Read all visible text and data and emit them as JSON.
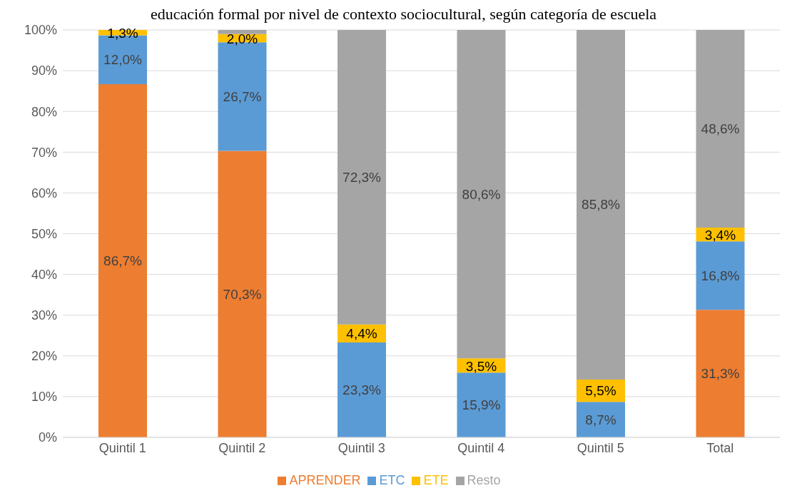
{
  "chart_data": {
    "type": "bar",
    "stacked": true,
    "title": "educación formal por nivel de contexto sociocultural, según categoría de escuela",
    "categories": [
      "Quintil 1",
      "Quintil 2",
      "Quintil 3",
      "Quintil 4",
      "Quintil 5",
      "Total"
    ],
    "series": [
      {
        "name": "APRENDER",
        "color": "#ed7d31",
        "values": [
          86.7,
          70.3,
          null,
          null,
          null,
          31.3
        ],
        "value_labels": [
          "86,7%",
          "70,3%",
          null,
          null,
          null,
          "31,3%"
        ]
      },
      {
        "name": "ETC",
        "color": "#5b9bd5",
        "values": [
          12.0,
          26.7,
          23.3,
          15.9,
          8.7,
          16.8
        ],
        "value_labels": [
          "12,0%",
          "26,7%",
          "23,3%",
          "15,9%",
          "8,7%",
          "16,8%"
        ]
      },
      {
        "name": "ETE",
        "color": "#ffc000",
        "values": [
          1.3,
          2.0,
          4.4,
          3.5,
          5.5,
          3.4
        ],
        "value_labels": [
          "1,3%",
          "2,0%",
          "4,4%",
          "3,5%",
          "5,5%",
          "3,4%"
        ]
      },
      {
        "name": "Resto",
        "color": "#a5a5a5",
        "values": [
          null,
          1.0,
          72.3,
          80.6,
          85.8,
          48.6
        ],
        "value_labels": [
          null,
          null,
          "72,3%",
          "80,6%",
          "85,8%",
          "48,6%"
        ]
      }
    ],
    "ylim": [
      0,
      100
    ],
    "yticks": [
      {
        "value": 0,
        "label": "0%"
      },
      {
        "value": 10,
        "label": "10%"
      },
      {
        "value": 20,
        "label": "20%"
      },
      {
        "value": 30,
        "label": "30%"
      },
      {
        "value": 40,
        "label": "40%"
      },
      {
        "value": 50,
        "label": "50%"
      },
      {
        "value": 60,
        "label": "60%"
      },
      {
        "value": 70,
        "label": "70%"
      },
      {
        "value": 80,
        "label": "80%"
      },
      {
        "value": 90,
        "label": "90%"
      },
      {
        "value": 100,
        "label": "100%"
      }
    ],
    "grid": "y",
    "legend": "bottom"
  }
}
